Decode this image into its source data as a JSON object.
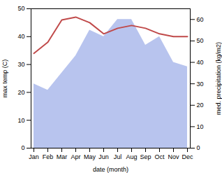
{
  "chart_data": {
    "type": "line",
    "categories": [
      "Jan",
      "Feb",
      "Mar",
      "Apr",
      "May",
      "Jun",
      "Jul",
      "Aug",
      "Sep",
      "Oct",
      "Nov",
      "Dec"
    ],
    "xlabel": "date (month)",
    "ylabel": "max temp (C)",
    "y2label": "med. precipitation (kg/m2)",
    "ylim": [
      0,
      50
    ],
    "yticks": [
      0,
      10,
      20,
      30,
      40,
      50
    ],
    "y2lim": [
      0,
      65
    ],
    "y2ticks": [
      0,
      10,
      20,
      30,
      40,
      50,
      60
    ],
    "series": [
      {
        "type": "area",
        "axis": "y2",
        "color": "#b8c4ee",
        "values": [
          30,
          27,
          35,
          43,
          55,
          52,
          60,
          60,
          48,
          52,
          40,
          38
        ]
      },
      {
        "type": "line",
        "color": "#c04a4a",
        "values": [
          34,
          38,
          46,
          47,
          45,
          41,
          43,
          44,
          43,
          41,
          40,
          40
        ]
      }
    ]
  }
}
